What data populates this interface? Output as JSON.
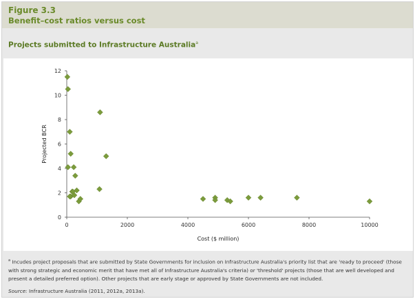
{
  "figure": {
    "label": "Figure 3.3",
    "title": "Benefit–cost ratios versus cost"
  },
  "chart_data": {
    "type": "scatter",
    "title": "Projects submitted to Infrastructure Australia",
    "title_note_marker": "a",
    "xlabel": "Cost ($ million)",
    "ylabel": "Projected BCR",
    "xlim": [
      0,
      10000
    ],
    "ylim": [
      0,
      12
    ],
    "xticks": [
      "0",
      "2000",
      "4000",
      "6000",
      "8000",
      "10000"
    ],
    "yticks": [
      "0",
      "2",
      "4",
      "6",
      "8",
      "10",
      "12"
    ],
    "grid": false,
    "marker": "diamond",
    "color": "#7b9b3c",
    "x": [
      20,
      40,
      100,
      130,
      40,
      230,
      280,
      130,
      180,
      250,
      330,
      100,
      200,
      400,
      450,
      1100,
      1300,
      1080,
      4500,
      4900,
      4900,
      5300,
      5400,
      6000,
      6400,
      7600,
      10000
    ],
    "y": [
      11.5,
      10.5,
      7.0,
      5.2,
      4.1,
      4.1,
      3.4,
      1.7,
      2.1,
      1.8,
      2.2,
      1.7,
      2.1,
      1.3,
      1.5,
      8.6,
      5.0,
      2.3,
      1.5,
      1.6,
      1.4,
      1.4,
      1.3,
      1.6,
      1.6,
      1.6,
      1.3
    ]
  },
  "footnote": {
    "marker": "a",
    "text": " Incudes project proposals that are submitted by State Governments for inclusion on Infrastructure Australia's priority list that are 'ready to proceed' (those with strong strategic and economic merit that have met all of Infrastructure Australia's criteria) or 'threshold' projects (those that are well developed and present a detailed preferred option). Other projects that are early stage or approved by State Governments are not included."
  },
  "source": {
    "label": "Source:",
    "text": " Infrastructure Australia (2011, 2012a, 2013a)."
  }
}
